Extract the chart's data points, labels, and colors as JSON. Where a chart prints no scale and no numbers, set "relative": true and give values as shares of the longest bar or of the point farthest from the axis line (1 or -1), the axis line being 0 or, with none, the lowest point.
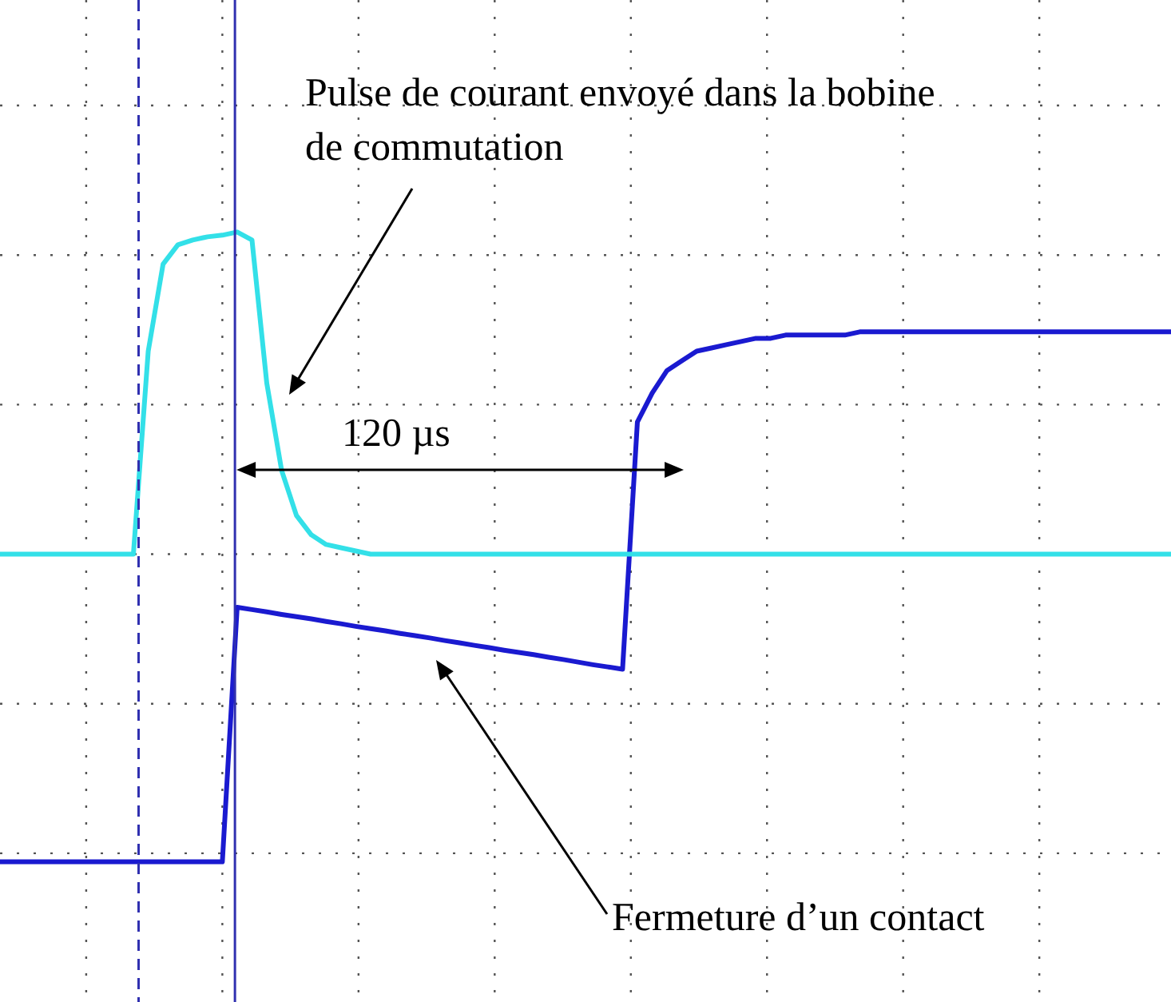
{
  "chart_data": {
    "type": "line",
    "relative": true,
    "grid": true,
    "legend": false,
    "marker": "none",
    "categories": [
      null,
      null,
      null,
      null,
      null,
      null,
      null,
      null,
      null,
      null,
      null,
      null,
      null,
      null,
      null,
      null,
      null,
      null,
      null,
      null,
      null,
      null,
      null,
      null,
      null,
      null,
      null,
      null,
      null,
      null,
      null,
      null,
      null,
      null,
      null,
      null,
      null,
      null,
      null,
      null,
      null,
      null,
      null,
      null,
      null,
      null,
      null,
      null,
      null,
      null,
      null,
      null,
      null,
      null,
      null,
      null,
      null,
      null,
      null,
      null,
      null,
      null,
      null,
      null,
      null,
      null,
      null,
      null,
      null,
      null,
      null,
      null,
      null,
      null,
      null,
      null,
      null,
      null,
      null,
      null
    ],
    "series": [
      {
        "color": "#33e0e8",
        "values": [
          0,
          0,
          0,
          0,
          0,
          0,
          0,
          0,
          0,
          0,
          0.63,
          0.9,
          0.96,
          0.975,
          0.985,
          0.99,
          1,
          0.975,
          0.53,
          0.26,
          0.12,
          0.06,
          0.03,
          0.02,
          0.01,
          0,
          0,
          0,
          0,
          0,
          0,
          0,
          0,
          0,
          0,
          0,
          0,
          0,
          0,
          0,
          0,
          0,
          0,
          0,
          0,
          0,
          0,
          0,
          0,
          0,
          0,
          0,
          0,
          0,
          0,
          0,
          0,
          0,
          0,
          0,
          0,
          0,
          0,
          0,
          0,
          0,
          0,
          0,
          0,
          0,
          0,
          0,
          0,
          0,
          0,
          0,
          0,
          0,
          0,
          0
        ]
      },
      {
        "color": "#1a1ad0",
        "values": [
          -0.955,
          -0.955,
          -0.955,
          -0.955,
          -0.955,
          -0.955,
          -0.955,
          -0.955,
          -0.955,
          -0.955,
          -0.955,
          -0.955,
          -0.955,
          -0.955,
          -0.955,
          -0.955,
          -0.165,
          -0.172,
          -0.179,
          -0.187,
          -0.194,
          -0.201,
          -0.209,
          -0.216,
          -0.224,
          -0.231,
          -0.238,
          -0.246,
          -0.253,
          -0.26,
          -0.268,
          -0.275,
          -0.283,
          -0.29,
          -0.298,
          -0.305,
          -0.312,
          -0.32,
          -0.327,
          -0.335,
          -0.343,
          -0.35,
          -0.357,
          0.41,
          0.5,
          0.57,
          0.6,
          0.63,
          0.64,
          0.65,
          0.66,
          0.67,
          0.67,
          0.68,
          0.68,
          0.68,
          0.68,
          0.68,
          0.69,
          0.69,
          0.69,
          0.69,
          0.69,
          0.69,
          0.69,
          0.69,
          0.69,
          0.69,
          0.69,
          0.69,
          0.69,
          0.69,
          0.69,
          0.69,
          0.69,
          0.69,
          0.69,
          0.69,
          0.69,
          0.69
        ]
      }
    ],
    "annotations": [
      "Pulse de courant envoyé dans la bobine de commutation",
      "120 µs",
      "Fermeture d’un contact"
    ]
  }
}
